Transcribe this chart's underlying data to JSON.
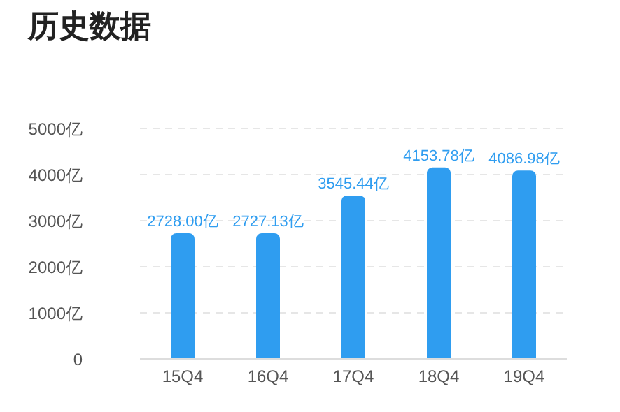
{
  "chart_data": {
    "type": "bar",
    "title": "历史数据",
    "categories": [
      "15Q4",
      "16Q4",
      "17Q4",
      "18Q4",
      "19Q4"
    ],
    "values": [
      2728.0,
      2727.13,
      3545.44,
      4153.78,
      4086.98
    ],
    "value_labels": [
      "2728.00亿",
      "2727.13亿",
      "3545.44亿",
      "4153.78亿",
      "4086.98亿"
    ],
    "color": "#2f9df0",
    "ylim": [
      0,
      5000
    ],
    "yticks": [
      0,
      {
        "value": 1000,
        "label": "1000亿"
      },
      {
        "value": 2000,
        "label": "2000亿"
      },
      {
        "value": 3000,
        "label": "3000亿"
      },
      {
        "value": 4000,
        "label": "4000亿"
      },
      {
        "value": 5000,
        "label": "5000亿"
      }
    ],
    "grid": "y",
    "legend": false
  }
}
